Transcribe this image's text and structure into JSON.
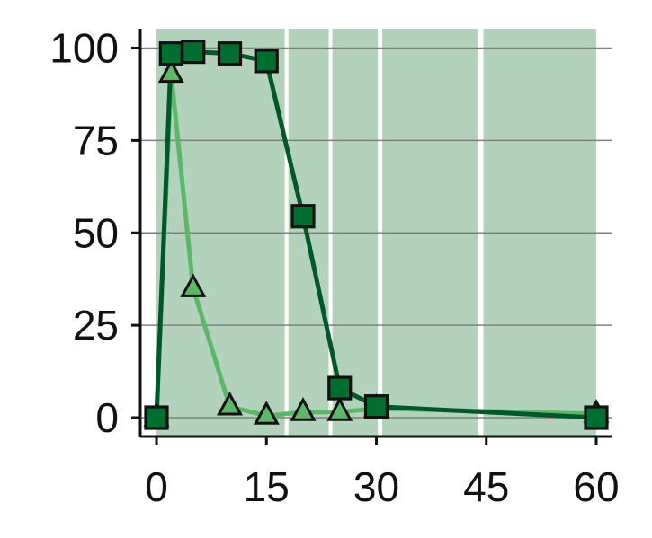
{
  "chart_data": {
    "type": "line",
    "title": "",
    "xlabel": "",
    "ylabel": "",
    "xlim": [
      -2,
      62
    ],
    "ylim": [
      -5,
      105
    ],
    "xticks": [
      {
        "value": 0,
        "label": "0"
      },
      {
        "value": 15,
        "label": "15"
      },
      {
        "value": 30,
        "label": "30"
      },
      {
        "value": 45,
        "label": "45"
      },
      {
        "value": 60,
        "label": "60"
      }
    ],
    "yticks": [
      {
        "value": 0,
        "label": "0"
      },
      {
        "value": 25,
        "label": "25"
      },
      {
        "value": 50,
        "label": "50"
      },
      {
        "value": 75,
        "label": "75"
      },
      {
        "value": 100,
        "label": "100"
      }
    ],
    "grid": "horizontal",
    "shaded_intervals": [
      [
        0,
        17.5
      ],
      [
        18,
        23.5
      ],
      [
        24,
        30.2
      ],
      [
        30.8,
        43.8
      ],
      [
        44.6,
        60
      ]
    ],
    "series": [
      {
        "marker": "triangle",
        "color": "#5cb868",
        "x": [
          0,
          2,
          5,
          10,
          15,
          20,
          25,
          30,
          60
        ],
        "y": [
          0,
          93,
          35,
          3,
          0.5,
          1.5,
          1.5,
          2.5,
          1
        ]
      },
      {
        "marker": "square",
        "color": "#00582a",
        "x": [
          0,
          2,
          5,
          10,
          15,
          20,
          25,
          30,
          60
        ],
        "y": [
          0,
          98.5,
          99,
          98.5,
          96.5,
          54.5,
          8,
          3,
          0
        ]
      }
    ],
    "colors": {
      "shade": "#b3d2bb",
      "grid": "#808080",
      "axis": "#111111",
      "triangle_series": "#5cb868",
      "square_series": "#00582a",
      "square_fill": "#006e2e"
    }
  }
}
